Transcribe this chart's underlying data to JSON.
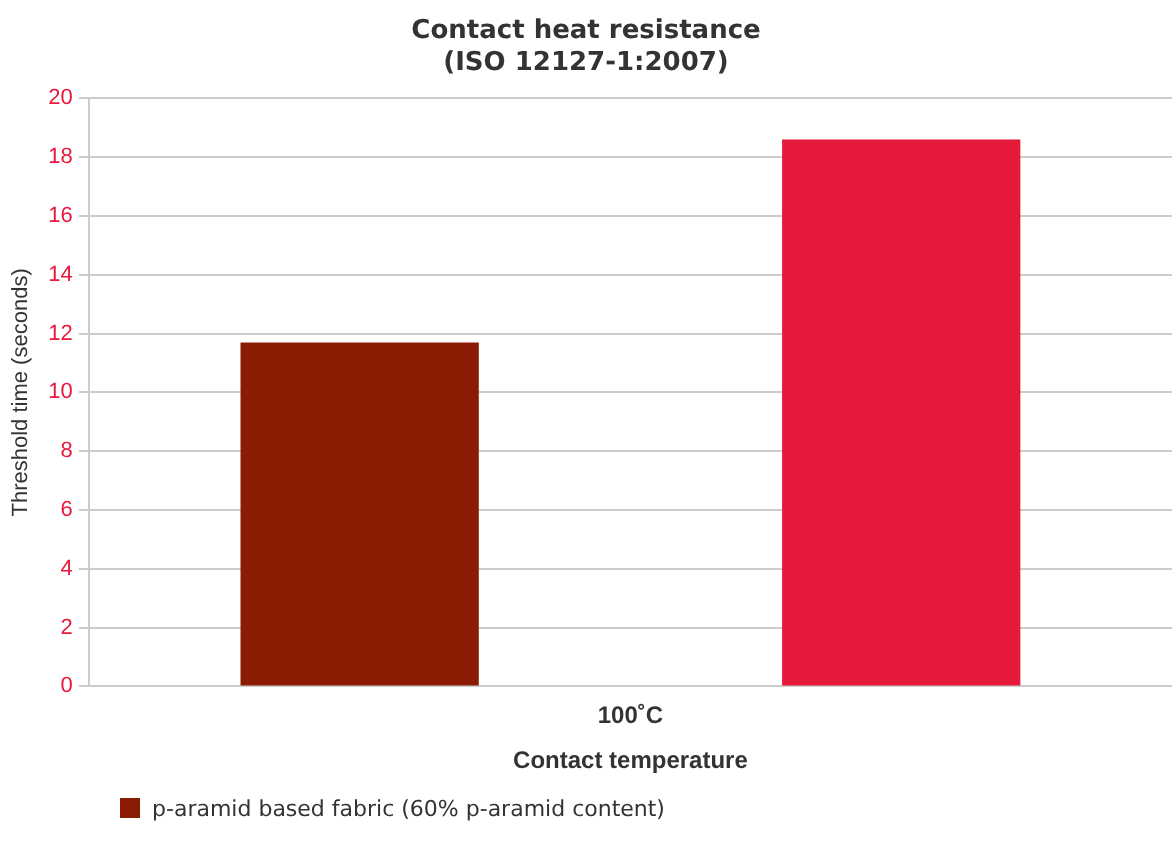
{
  "chart_data": {
    "type": "bar",
    "title": "Contact heat resistance\n(ISO 12127-1:2007)",
    "xlabel": "Contact temperature",
    "ylabel": "Threshold time (seconds)",
    "categories": [
      "100˚C"
    ],
    "series": [
      {
        "name": "p-aramid based fabric (60% p-aramid content)",
        "color": "#8b1c03",
        "values": [
          11.7
        ]
      },
      {
        "color": "#e5193a",
        "values": [
          18.6
        ]
      }
    ],
    "ylim": [
      0,
      20
    ],
    "yticks": [
      0,
      2,
      4,
      6,
      8,
      10,
      12,
      14,
      16,
      18,
      20
    ],
    "grid": "y",
    "legend": "bottom left"
  }
}
